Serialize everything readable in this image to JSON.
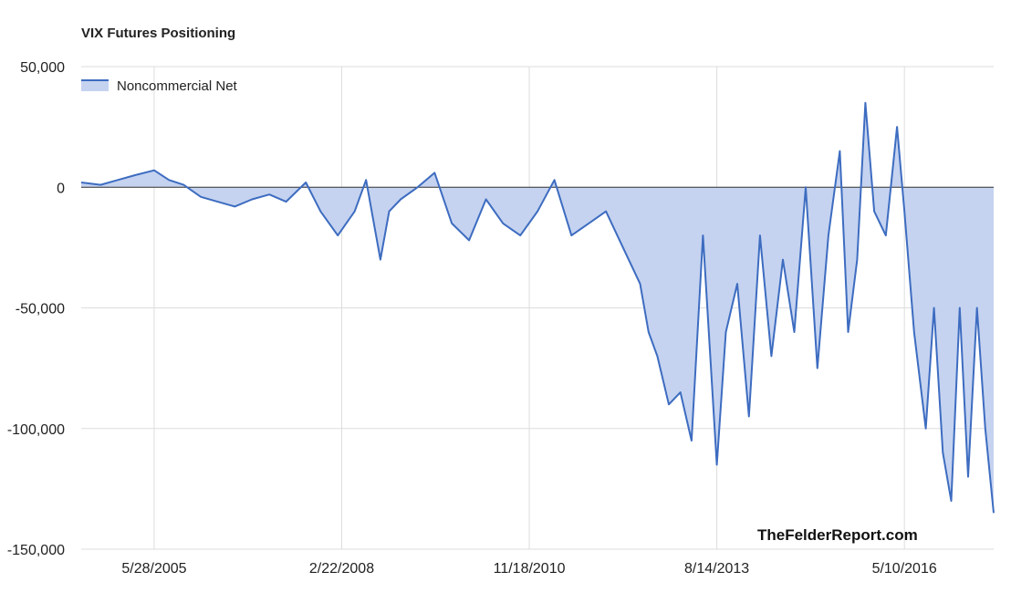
{
  "chart_data": {
    "type": "area",
    "title": "VIX Futures Positioning",
    "watermark": "TheFelderReport.com",
    "xlabel": "",
    "ylabel": "",
    "ylim": [
      -150000,
      50000
    ],
    "xlim": [
      "2004-05-04",
      "2017-08-29"
    ],
    "y_ticks": [
      50000,
      0,
      -50000,
      -100000,
      -150000
    ],
    "y_tick_labels": [
      "50,000",
      "0",
      "-50,000",
      "-100,000",
      "-150,000"
    ],
    "x_ticks": [
      "2005-05-28",
      "2008-02-22",
      "2010-11-18",
      "2013-08-14",
      "2016-05-10"
    ],
    "x_tick_labels": [
      "5/28/2005",
      "2/22/2008",
      "11/18/2010",
      "8/14/2013",
      "5/10/2016"
    ],
    "grid": true,
    "legend_position": "top-left",
    "colors": {
      "line": "#3d6cc0",
      "fill": "#c5d3f0",
      "grid": "#dddddd",
      "zero_line": "#333333"
    },
    "series": [
      {
        "name": "Noncommercial Net",
        "x": [
          "2004-05-04",
          "2004-08-15",
          "2004-11-15",
          "2005-02-15",
          "2005-05-28",
          "2005-08-15",
          "2005-11-01",
          "2006-02-01",
          "2006-05-01",
          "2006-08-01",
          "2006-11-01",
          "2007-02-01",
          "2007-05-01",
          "2007-08-15",
          "2007-11-01",
          "2008-02-01",
          "2008-05-01",
          "2008-07-01",
          "2008-09-15",
          "2008-11-01",
          "2009-01-01",
          "2009-04-01",
          "2009-07-01",
          "2009-10-01",
          "2010-01-01",
          "2010-04-01",
          "2010-07-01",
          "2010-10-01",
          "2011-01-01",
          "2011-04-01",
          "2011-07-01",
          "2011-10-01",
          "2012-01-01",
          "2012-04-01",
          "2012-07-01",
          "2012-08-15",
          "2012-10-01",
          "2012-12-01",
          "2013-02-01",
          "2013-04-01",
          "2013-06-01",
          "2013-08-14",
          "2013-10-01",
          "2013-12-01",
          "2014-02-01",
          "2014-04-01",
          "2014-06-01",
          "2014-08-01",
          "2014-10-01",
          "2014-12-01",
          "2015-02-01",
          "2015-04-01",
          "2015-06-01",
          "2015-07-15",
          "2015-09-01",
          "2015-10-15",
          "2015-12-01",
          "2016-02-01",
          "2016-04-01",
          "2016-05-10",
          "2016-07-01",
          "2016-09-01",
          "2016-10-15",
          "2016-12-01",
          "2017-01-15",
          "2017-03-01",
          "2017-04-15",
          "2017-06-01",
          "2017-07-15",
          "2017-08-29"
        ],
        "values": [
          2000,
          1000,
          3000,
          5000,
          7000,
          3000,
          1000,
          -4000,
          -6000,
          -8000,
          -5000,
          -3000,
          -6000,
          2000,
          -10000,
          -20000,
          -10000,
          3000,
          -30000,
          -10000,
          -5000,
          0,
          6000,
          -15000,
          -22000,
          -5000,
          -15000,
          -20000,
          -10000,
          3000,
          -20000,
          -15000,
          -10000,
          -25000,
          -40000,
          -60000,
          -70000,
          -90000,
          -85000,
          -105000,
          -20000,
          -115000,
          -60000,
          -40000,
          -95000,
          -20000,
          -70000,
          -30000,
          -60000,
          0,
          -75000,
          -20000,
          15000,
          -60000,
          -30000,
          35000,
          -10000,
          -20000,
          25000,
          -10000,
          -60000,
          -100000,
          -50000,
          -110000,
          -130000,
          -50000,
          -120000,
          -50000,
          -100000,
          -135000
        ]
      }
    ]
  }
}
